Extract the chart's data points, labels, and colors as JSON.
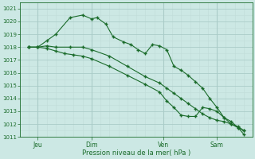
{
  "title": "Pression niveau de la mer( hPa )",
  "bg_color": "#cce8e4",
  "grid_color_major": "#aaccc8",
  "grid_color_minor": "#c0dcd8",
  "line_color": "#1a6b2a",
  "ylim": [
    1011,
    1021.5
  ],
  "yticks": [
    1011,
    1012,
    1013,
    1014,
    1015,
    1016,
    1017,
    1018,
    1019,
    1020,
    1021
  ],
  "xlim": [
    0,
    13.0
  ],
  "xlabel_ticks": [
    {
      "label": "Jeu",
      "x": 1.0
    },
    {
      "label": "Dim",
      "x": 4.0
    },
    {
      "label": "Ven",
      "x": 8.0
    },
    {
      "label": "Sam",
      "x": 11.0
    }
  ],
  "vlines": [
    1.0,
    4.0,
    8.0,
    11.0
  ],
  "series": [
    {
      "x": [
        0.5,
        1.0,
        1.5,
        2.0,
        2.8,
        3.5,
        4.0,
        4.3,
        4.8,
        5.2,
        5.8,
        6.2,
        6.6,
        7.0,
        7.4,
        7.8,
        8.2,
        8.6,
        9.0,
        9.4,
        9.8,
        10.2,
        10.6,
        11.0,
        11.4,
        11.8,
        12.2,
        12.5
      ],
      "y": [
        1018.0,
        1018.0,
        1018.5,
        1019.0,
        1020.3,
        1020.5,
        1020.2,
        1020.3,
        1019.8,
        1018.8,
        1018.4,
        1018.2,
        1017.8,
        1017.5,
        1018.2,
        1018.1,
        1017.8,
        1016.5,
        1016.2,
        1015.8,
        1015.3,
        1014.8,
        1014.0,
        1013.3,
        1012.5,
        1012.2,
        1011.7,
        1011.2
      ]
    },
    {
      "x": [
        0.5,
        1.0,
        1.5,
        2.0,
        2.8,
        3.5,
        4.0,
        5.0,
        6.0,
        7.0,
        7.8,
        8.2,
        8.6,
        9.0,
        9.4,
        9.8,
        10.2,
        10.6,
        11.0,
        11.4,
        11.8,
        12.2,
        12.5
      ],
      "y": [
        1018.0,
        1018.0,
        1018.1,
        1018.0,
        1018.0,
        1018.0,
        1017.8,
        1017.3,
        1016.5,
        1015.7,
        1015.2,
        1014.8,
        1014.4,
        1014.0,
        1013.6,
        1013.2,
        1012.8,
        1012.5,
        1012.3,
        1012.2,
        1012.0,
        1011.7,
        1011.5
      ]
    },
    {
      "x": [
        0.5,
        1.0,
        1.5,
        2.0,
        2.5,
        3.0,
        3.5,
        4.0,
        5.0,
        6.0,
        7.0,
        7.8,
        8.2,
        8.6,
        9.0,
        9.4,
        9.8,
        10.2,
        10.6,
        11.0,
        11.4,
        11.8,
        12.2,
        12.5
      ],
      "y": [
        1018.0,
        1018.0,
        1017.9,
        1017.7,
        1017.5,
        1017.4,
        1017.3,
        1017.1,
        1016.5,
        1015.8,
        1015.1,
        1014.5,
        1013.8,
        1013.3,
        1012.7,
        1012.6,
        1012.6,
        1013.3,
        1013.2,
        1013.0,
        1012.5,
        1012.0,
        1011.8,
        1011.5
      ]
    }
  ],
  "marker_indices": {
    "s0": [
      0,
      2,
      4,
      6,
      8,
      10,
      12,
      14,
      16,
      18,
      20,
      22,
      24,
      26
    ],
    "s1": [
      0,
      2,
      4,
      6,
      8,
      10,
      12,
      14,
      16,
      18,
      20,
      22
    ],
    "s2": [
      0,
      2,
      4,
      6,
      8,
      10,
      12,
      14,
      16,
      18,
      20,
      22
    ]
  }
}
